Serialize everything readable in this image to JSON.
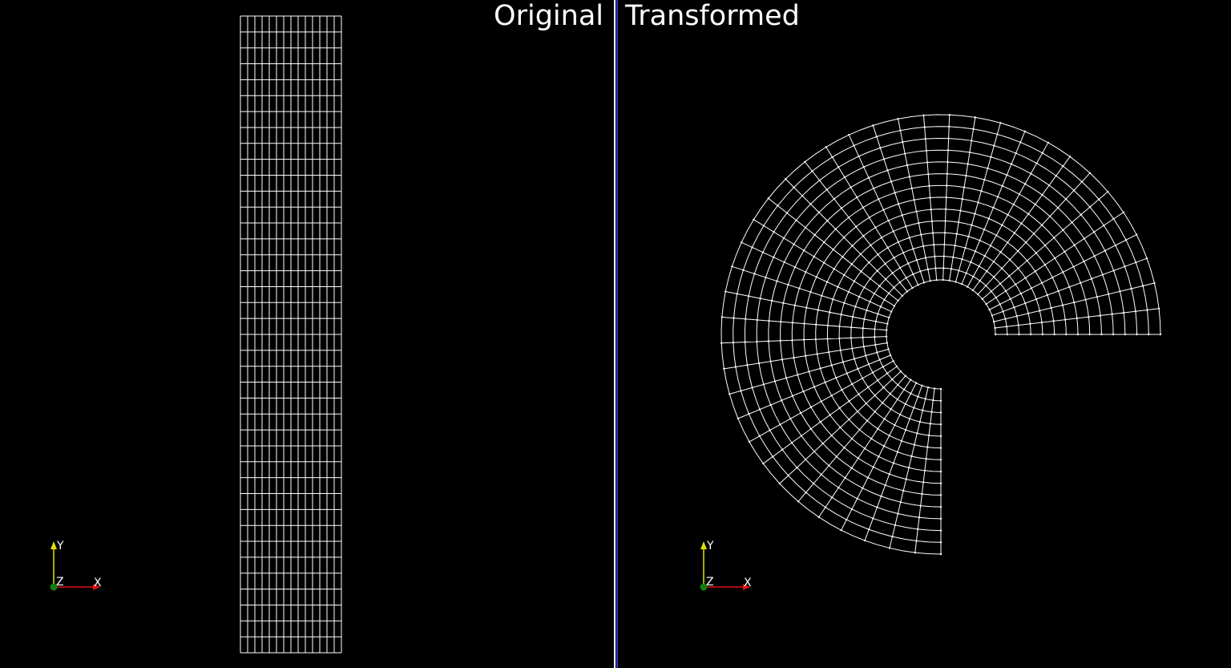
{
  "viewports": {
    "left": {
      "title": "Original"
    },
    "right": {
      "title": "Transformed"
    }
  },
  "axes": {
    "x_label": "X",
    "y_label": "Y",
    "z_label": "Z"
  },
  "colors": {
    "background": "#000000",
    "mesh": "#ffffff",
    "separator_blue": "#2b3bd6",
    "axis_x": "#e01010",
    "axis_y": "#e0e010",
    "axis_z": "#108010"
  },
  "mesh": {
    "columns": 14,
    "rows": 40,
    "transform_sweep_degrees": 270
  }
}
